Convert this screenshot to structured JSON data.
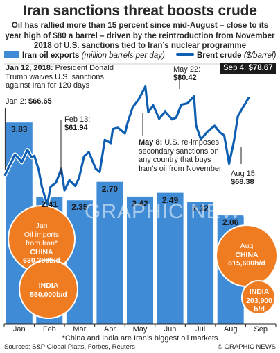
{
  "title": "Iran sanctions threat boosts crude",
  "subtitle": "Oil has rallied more than 15 percent since mid-August – close to its year high of $80 a barrel – driven by the reintroduction from November 2018 of U.S. sanctions tied to Iran’s nuclear programme",
  "legend": {
    "exports_label": "Iran oil exports",
    "exports_unit": "(million barrels per day)",
    "brent_label": "Brent crude",
    "brent_unit": "($/barrel)"
  },
  "annotations": {
    "jan12_date": "Jan 12, 2018:",
    "jan12_text1": " President Donald",
    "jan12_text2": "Trump waives U.S. sanctions",
    "jan12_text3": "against Iran for 120 days",
    "may8_date": "May 8:",
    "may8_text1": " U.S. re-imposes",
    "may8_text2": "secondary sanctions on",
    "may8_text3": "any country that buys",
    "may8_text4": "Iran’s oil from November"
  },
  "points": {
    "jan2_label": "Jan 2:",
    "jan2_value": "$66.65",
    "feb13_label": "Feb 13:",
    "feb13_value": "$61.94",
    "may22_label": "May 22:",
    "may22_value": "$80.42",
    "aug15_label": "Aug 15:",
    "aug15_value": "$68.38",
    "sep4_label": "Sep 4:",
    "sep4_value": "$78.67"
  },
  "bubbles": {
    "jan_title1": "Jan",
    "jan_title2": "Oil imports",
    "jan_title3": "from Iran*",
    "jan_china": "CHINA",
    "jan_china_val": "630,380b/d",
    "jan_india": "INDIA",
    "jan_india_val": "550,000b/d",
    "aug_title": "Aug",
    "aug_china": "CHINA",
    "aug_china_val": "615,600b/d",
    "aug_india": "INDIA",
    "aug_india_val1": "203,900",
    "aug_india_val2": "b/d"
  },
  "footnote": "*China and India are Iran’s biggest oil markets",
  "sources": "Sources: S&P Global Platts, Forbes, Reuters",
  "credit": "© GRAPHIC NEWS",
  "watermark": "GRAPHIC NEWS",
  "colors": {
    "bar": "#3f8bd6",
    "line": "#0e5fb2",
    "bubble": "#f07c22",
    "background": "#ffffff"
  },
  "chart_data": [
    {
      "type": "bar",
      "series": [
        {
          "name": "Iran oil exports",
          "values": [
            3.83,
            2.41,
            2.35,
            2.7,
            2.42,
            2.49,
            2.32,
            2.06
          ]
        }
      ],
      "categories": [
        "Jan",
        "Feb",
        "Mar",
        "Apr",
        "May",
        "Jun",
        "Jul",
        "Aug"
      ],
      "value_labels": [
        "3.83",
        "2.41",
        "2.35",
        "2.70",
        "2.42",
        "2.49",
        "2.32",
        "2.06"
      ],
      "unit": "million barrels per day",
      "ylim": [
        0,
        4.5
      ]
    },
    {
      "type": "line",
      "series": [
        {
          "name": "Brent crude",
          "x": [
            "2018-01-02",
            "2018-01-05",
            "2018-01-09",
            "2018-01-12",
            "2018-01-16",
            "2018-01-19",
            "2018-01-23",
            "2018-01-25",
            "2018-01-29",
            "2018-02-01",
            "2018-02-05",
            "2018-02-08",
            "2018-02-13",
            "2018-02-16",
            "2018-02-21",
            "2018-02-26",
            "2018-03-01",
            "2018-03-06",
            "2018-03-12",
            "2018-03-16",
            "2018-03-21",
            "2018-03-26",
            "2018-04-02",
            "2018-04-06",
            "2018-04-11",
            "2018-04-17",
            "2018-04-19",
            "2018-04-24",
            "2018-05-01",
            "2018-05-04",
            "2018-05-09",
            "2018-05-15",
            "2018-05-22",
            "2018-05-25",
            "2018-05-30",
            "2018-06-05",
            "2018-06-11",
            "2018-06-18",
            "2018-06-22",
            "2018-06-27",
            "2018-07-03",
            "2018-07-10",
            "2018-07-12",
            "2018-07-17",
            "2018-07-24",
            "2018-07-31",
            "2018-08-06",
            "2018-08-10",
            "2018-08-15",
            "2018-08-20",
            "2018-08-24",
            "2018-08-29",
            "2018-09-04"
          ],
          "values": [
            66.65,
            67.6,
            68.8,
            69.8,
            69.2,
            68.6,
            69.9,
            70.5,
            69.4,
            69.6,
            67.4,
            64.8,
            61.94,
            64.8,
            65.4,
            67.6,
            64.2,
            65.8,
            64.9,
            66.2,
            69.5,
            70.2,
            67.6,
            67.1,
            72.1,
            71.6,
            73.8,
            74.0,
            73.1,
            74.9,
            77.2,
            78.4,
            80.42,
            76.4,
            77.5,
            75.4,
            76.5,
            75.3,
            75.6,
            77.6,
            77.8,
            78.9,
            74.4,
            72.2,
            73.4,
            74.3,
            73.2,
            72.8,
            68.38,
            71.9,
            75.8,
            77.1,
            78.67
          ],
          "key_points": [
            "Jan 2: $66.65",
            "Feb 13: $61.94",
            "May 22: $80.42",
            "Aug 15: $68.38",
            "Sep 4: $78.67"
          ]
        }
      ],
      "xlabels": [
        "Jan",
        "Feb",
        "Mar",
        "Apr",
        "May",
        "Jun",
        "Jul",
        "Aug",
        "Sep"
      ],
      "unit": "$/barrel",
      "ylim": [
        50,
        82
      ]
    }
  ]
}
